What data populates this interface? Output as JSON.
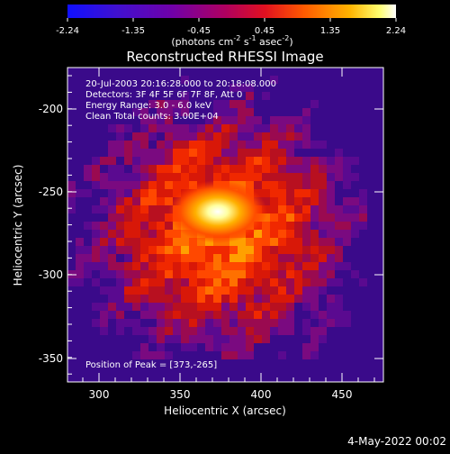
{
  "colorbar": {
    "ticks": [
      "-2.24",
      "-1.35",
      "-0.45",
      "0.45",
      "1.35",
      "2.24"
    ],
    "unit_main": "(photons cm",
    "unit_sup1": "-2",
    "unit_mid1": " s",
    "unit_sup2": "-1",
    "unit_mid2": " asec",
    "unit_sup3": "-2",
    "unit_end": ")",
    "colors": [
      "#1010ff",
      "#5010c0",
      "#7a00a0",
      "#b00060",
      "#e00020",
      "#ff6000",
      "#ffb000",
      "#ffff80",
      "#ffffff"
    ]
  },
  "plot": {
    "title": "Reconstructed RHESSI Image",
    "info": [
      "20-Jul-2003 20:16:28.000 to 20:18:08.000",
      "Detectors: 3F 4F 5F 6F 7F 8F, Att 0",
      "Energy Range: 3.0 - 6.0 keV",
      "Clean     Total counts: 3.00E+04"
    ],
    "peak_label": "Position of Peak = [373,-265]",
    "xlabel": "Heliocentric X (arcsec)",
    "ylabel": "Heliocentric Y (arcsec)",
    "xticks": [
      "300",
      "350",
      "400",
      "450"
    ],
    "yticks": [
      "-200",
      "-250",
      "-300",
      "-350"
    ]
  },
  "footer": {
    "date": "4-May-2022 00:02"
  }
}
